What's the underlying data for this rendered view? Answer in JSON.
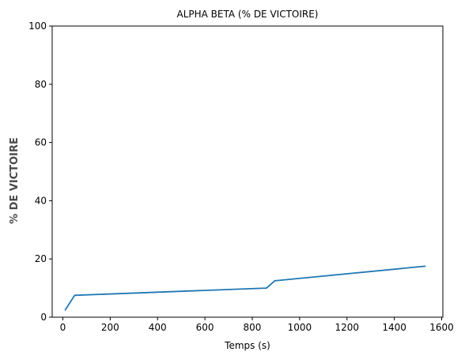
{
  "chart_data": {
    "type": "line",
    "title": "ALPHA BETA (% DE VICTOIRE)",
    "xlabel": "Temps (s)",
    "ylabel": "% DE VICTOIRE",
    "xlim": [
      -45,
      1605
    ],
    "ylim": [
      0,
      100
    ],
    "x_ticks": [
      0,
      200,
      400,
      600,
      800,
      1000,
      1200,
      1400,
      1600
    ],
    "y_ticks": [
      0,
      20,
      40,
      60,
      80,
      100
    ],
    "grid": false,
    "colors": {
      "line": "#1f77b4"
    },
    "series": [
      {
        "x": [
          10,
          50,
          860,
          895,
          1530
        ],
        "y": [
          2.5,
          7.5,
          10.0,
          12.5,
          17.5
        ]
      }
    ]
  }
}
